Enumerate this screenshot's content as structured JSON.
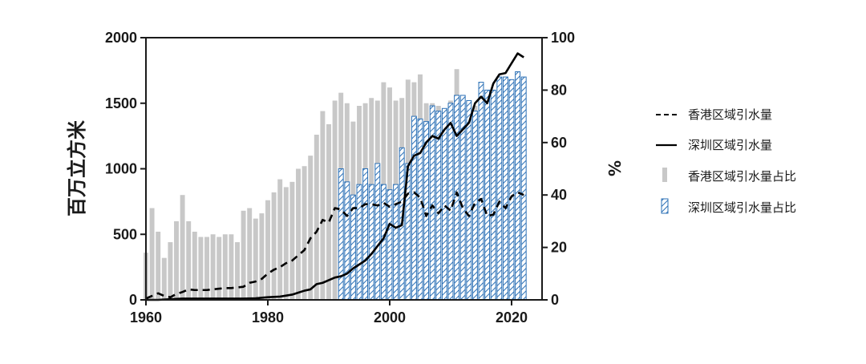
{
  "chart_data": {
    "type": "bar",
    "ylabel": "百万立方米",
    "y2label": "%",
    "ylim": [
      0,
      2000
    ],
    "y2lim": [
      0,
      100
    ],
    "xlim": [
      1960,
      2025
    ],
    "x_ticks": [
      "1960",
      "1980",
      "2000",
      "2020"
    ],
    "y_ticks": [
      "0",
      "500",
      "1000",
      "1500",
      "2000"
    ],
    "y2_ticks": [
      "0",
      "20",
      "40",
      "60",
      "80",
      "100"
    ],
    "legend_position": "right",
    "colors": {
      "hk_bar": "#c8c8c8",
      "sz_bar": "#2a6fb5",
      "line": "#000000"
    },
    "legend": [
      {
        "key": "hk_line",
        "label": "香港区域引水量"
      },
      {
        "key": "sz_line",
        "label": "深圳区域引水量"
      },
      {
        "key": "hk_share",
        "label": "香港区域引水量占比"
      },
      {
        "key": "sz_share",
        "label": "深圳区域引水量占比"
      }
    ],
    "series": [
      {
        "name": "香港区域引水量占比",
        "type": "bar",
        "axis": "right",
        "x": [
          1960,
          1961,
          1962,
          1963,
          1964,
          1965,
          1966,
          1967,
          1968,
          1969,
          1970,
          1971,
          1972,
          1973,
          1974,
          1975,
          1976,
          1977,
          1978,
          1979,
          1980,
          1981,
          1982,
          1983,
          1984,
          1985,
          1986,
          1987,
          1988,
          1989,
          1990,
          1991,
          1992,
          1993,
          1994,
          1995,
          1996,
          1997,
          1998,
          1999,
          2000,
          2001,
          2002,
          2003,
          2004,
          2005,
          2006,
          2007,
          2008,
          2009,
          2010,
          2011,
          2012,
          2013,
          2014,
          2015,
          2016,
          2017,
          2018,
          2019,
          2020,
          2021,
          2022
        ],
        "values": [
          18,
          35,
          26,
          16,
          22,
          30,
          40,
          30,
          26,
          24,
          24,
          25,
          24,
          25,
          25,
          22,
          34,
          35,
          31,
          33,
          38,
          41,
          46,
          43,
          45,
          50,
          51,
          55,
          63,
          72,
          67,
          76,
          79,
          75,
          68,
          74,
          75,
          77,
          76,
          83,
          81,
          76,
          77,
          84,
          83,
          86,
          75,
          75,
          74,
          73,
          76,
          88,
          72,
          76,
          74,
          76,
          77,
          79,
          78,
          79,
          77,
          80,
          82
        ]
      },
      {
        "name": "深圳区域引水量占比",
        "type": "bar",
        "axis": "right",
        "x": [
          1992,
          1993,
          1994,
          1995,
          1996,
          1997,
          1998,
          1999,
          2000,
          2001,
          2002,
          2003,
          2004,
          2005,
          2006,
          2007,
          2008,
          2009,
          2010,
          2011,
          2012,
          2013,
          2014,
          2015,
          2016,
          2017,
          2018,
          2019,
          2020,
          2021,
          2022
        ],
        "values": [
          50,
          45,
          40,
          44,
          50,
          44,
          52,
          44,
          42,
          44,
          58,
          52,
          70,
          69,
          68,
          74,
          72,
          73,
          75,
          78,
          78,
          76,
          72,
          83,
          80,
          80,
          85,
          85,
          84,
          87,
          85
        ]
      },
      {
        "name": "香港区域引水量",
        "type": "line",
        "dash": "dashed",
        "axis": "left",
        "x": [
          1960,
          1961,
          1962,
          1963,
          1964,
          1965,
          1966,
          1967,
          1968,
          1969,
          1970,
          1971,
          1972,
          1973,
          1974,
          1975,
          1976,
          1977,
          1978,
          1979,
          1980,
          1981,
          1982,
          1983,
          1984,
          1985,
          1986,
          1987,
          1988,
          1989,
          1990,
          1991,
          1992,
          1993,
          1994,
          1995,
          1996,
          1997,
          1998,
          1999,
          2000,
          2001,
          2002,
          2003,
          2004,
          2005,
          2006,
          2007,
          2008,
          2009,
          2010,
          2011,
          2012,
          2013,
          2014,
          2015,
          2016,
          2017,
          2018,
          2019,
          2020,
          2021,
          2022
        ],
        "values": [
          10,
          30,
          50,
          30,
          20,
          45,
          60,
          80,
          75,
          75,
          75,
          80,
          85,
          90,
          90,
          95,
          100,
          130,
          140,
          160,
          200,
          230,
          250,
          280,
          300,
          340,
          380,
          470,
          520,
          610,
          590,
          700,
          690,
          640,
          700,
          700,
          730,
          730,
          720,
          740,
          710,
          730,
          750,
          810,
          820,
          780,
          640,
          720,
          660,
          720,
          680,
          820,
          700,
          640,
          740,
          770,
          640,
          650,
          750,
          700,
          790,
          820,
          800
        ]
      },
      {
        "name": "深圳区域引水量",
        "type": "line",
        "dash": "solid",
        "axis": "left",
        "x": [
          1960,
          1962,
          1964,
          1966,
          1968,
          1970,
          1972,
          1974,
          1976,
          1978,
          1980,
          1982,
          1984,
          1985,
          1986,
          1987,
          1988,
          1989,
          1990,
          1991,
          1992,
          1993,
          1994,
          1995,
          1996,
          1997,
          1998,
          1999,
          2000,
          2001,
          2002,
          2003,
          2004,
          2005,
          2006,
          2007,
          2008,
          2009,
          2010,
          2011,
          2012,
          2013,
          2014,
          2015,
          2016,
          2017,
          2018,
          2019,
          2021,
          2022
        ],
        "values": [
          0,
          0,
          5,
          10,
          10,
          10,
          10,
          10,
          10,
          12,
          20,
          25,
          40,
          55,
          70,
          80,
          120,
          130,
          150,
          170,
          180,
          200,
          240,
          270,
          300,
          350,
          410,
          470,
          580,
          550,
          570,
          1020,
          1100,
          1120,
          1200,
          1250,
          1230,
          1300,
          1350,
          1250,
          1300,
          1350,
          1500,
          1550,
          1500,
          1650,
          1720,
          1730,
          1880,
          1850
        ]
      }
    ]
  }
}
